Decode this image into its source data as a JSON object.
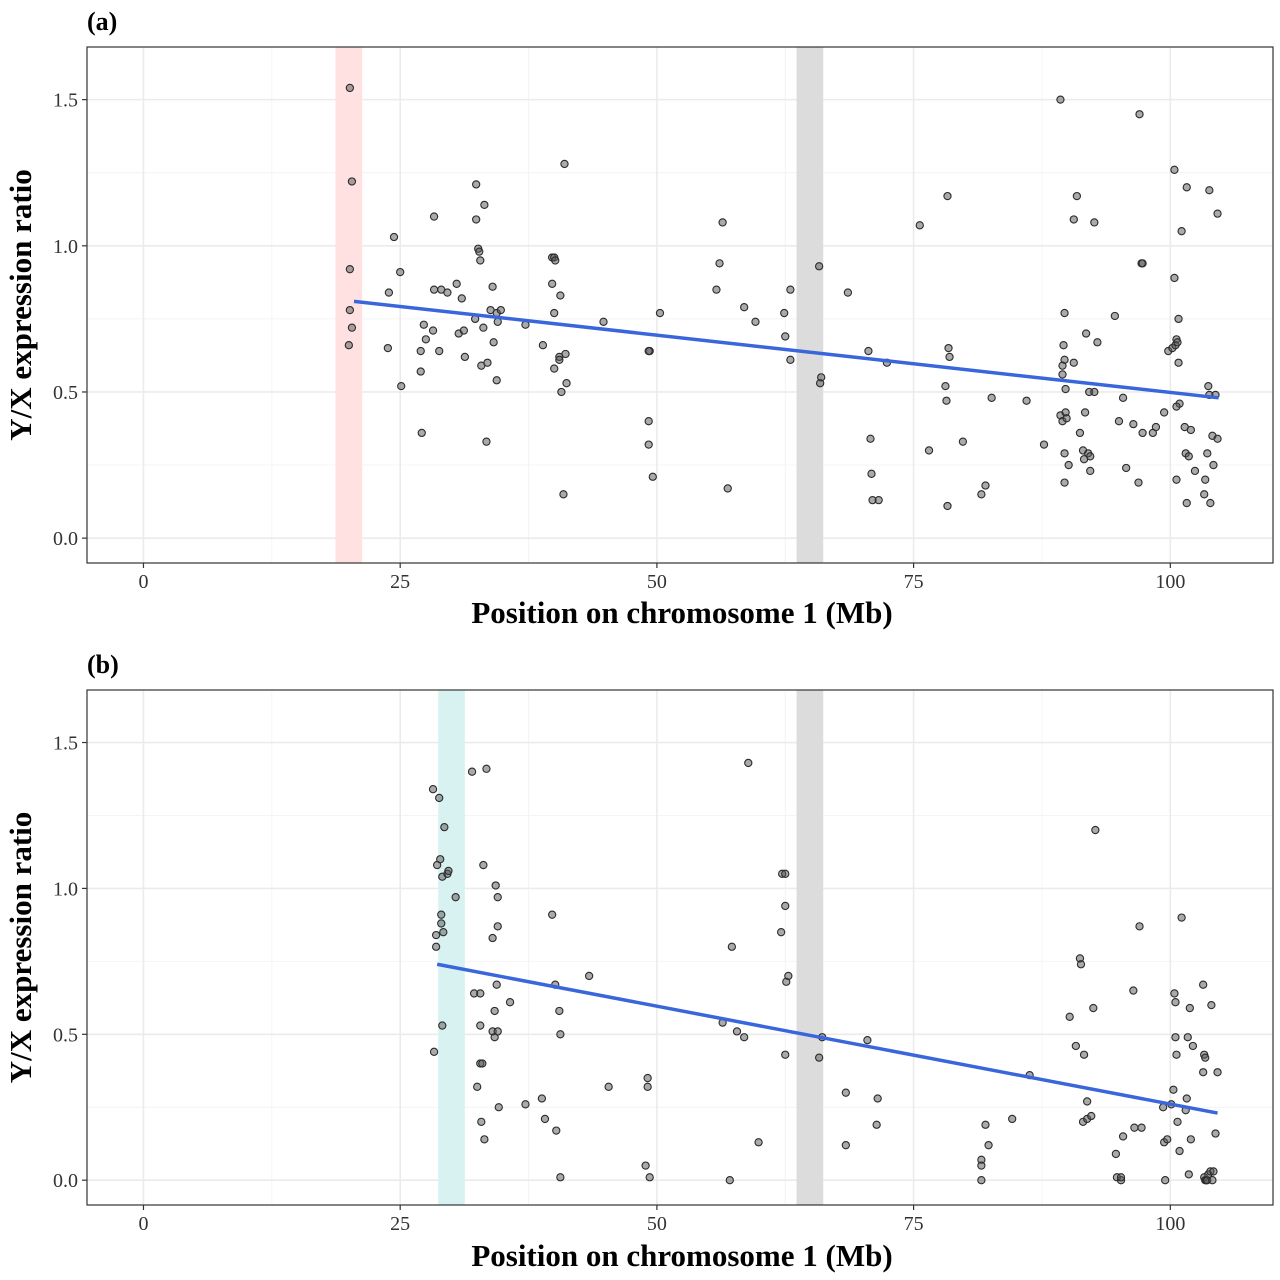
{
  "chart_data": [
    {
      "type": "scatter",
      "panel_label": "(a)",
      "xlabel": "Position on chromosome 1 (Mb)",
      "ylabel": "Y/X expression ratio",
      "xlim": [
        -5.5,
        110
      ],
      "ylim": [
        -0.085,
        1.68
      ],
      "x_ticks": [
        0,
        25,
        50,
        75,
        100
      ],
      "x_tick_labels": [
        "0",
        "25",
        "50",
        "75",
        "100"
      ],
      "y_ticks": [
        0,
        0.5,
        1,
        1.5
      ],
      "y_tick_labels": [
        "0.0",
        "0.5",
        "1.0",
        "1.5"
      ],
      "grid": true,
      "highlight_bands": [
        {
          "x0": 18.7,
          "x1": 21.3,
          "color": "#ffe1e1"
        },
        {
          "x0": 63.6,
          "x1": 66.2,
          "color": "#dcdcdc"
        }
      ],
      "trend_line": {
        "x": [
          20.5,
          104.7
        ],
        "y": [
          0.81,
          0.48
        ],
        "color": "#3a66dc"
      },
      "point_color": "#555555",
      "points": [
        [
          20.1,
          1.54
        ],
        [
          20.3,
          1.22
        ],
        [
          20.1,
          0.92
        ],
        [
          20.1,
          0.78
        ],
        [
          20.3,
          0.72
        ],
        [
          20.0,
          0.66
        ],
        [
          23.9,
          0.84
        ],
        [
          24.4,
          1.03
        ],
        [
          23.8,
          0.65
        ],
        [
          25.0,
          0.91
        ],
        [
          25.1,
          0.52
        ],
        [
          27.0,
          0.57
        ],
        [
          27.1,
          0.36
        ],
        [
          27.0,
          0.64
        ],
        [
          27.3,
          0.73
        ],
        [
          27.5,
          0.68
        ],
        [
          28.2,
          0.71
        ],
        [
          28.3,
          1.1
        ],
        [
          28.3,
          0.85
        ],
        [
          28.8,
          0.64
        ],
        [
          29.0,
          0.85
        ],
        [
          29.6,
          0.84
        ],
        [
          30.5,
          0.87
        ],
        [
          30.7,
          0.7
        ],
        [
          31.0,
          0.82
        ],
        [
          31.2,
          0.71
        ],
        [
          31.3,
          0.62
        ],
        [
          32.3,
          0.75
        ],
        [
          32.4,
          1.09
        ],
        [
          32.4,
          1.21
        ],
        [
          32.6,
          0.99
        ],
        [
          32.7,
          0.98
        ],
        [
          32.8,
          0.95
        ],
        [
          32.9,
          0.59
        ],
        [
          33.1,
          0.72
        ],
        [
          33.2,
          1.14
        ],
        [
          33.5,
          0.6
        ],
        [
          33.4,
          0.33
        ],
        [
          33.8,
          0.78
        ],
        [
          34.0,
          0.86
        ],
        [
          34.1,
          0.67
        ],
        [
          34.4,
          0.77
        ],
        [
          34.5,
          0.74
        ],
        [
          34.4,
          0.54
        ],
        [
          34.8,
          0.78
        ],
        [
          37.2,
          0.73
        ],
        [
          38.9,
          0.66
        ],
        [
          39.8,
          0.96
        ],
        [
          40.0,
          0.96
        ],
        [
          39.8,
          0.87
        ],
        [
          40.0,
          0.77
        ],
        [
          40.1,
          0.95
        ],
        [
          40.6,
          0.83
        ],
        [
          40.0,
          0.58
        ],
        [
          40.5,
          0.62
        ],
        [
          40.5,
          0.61
        ],
        [
          40.7,
          0.5
        ],
        [
          40.9,
          0.15
        ],
        [
          41.1,
          0.63
        ],
        [
          41.2,
          0.53
        ],
        [
          41.0,
          1.28
        ],
        [
          44.8,
          0.74
        ],
        [
          49.3,
          0.64
        ],
        [
          49.2,
          0.64
        ],
        [
          49.2,
          0.4
        ],
        [
          49.2,
          0.32
        ],
        [
          49.6,
          0.21
        ],
        [
          50.3,
          0.77
        ],
        [
          55.8,
          0.85
        ],
        [
          56.4,
          1.08
        ],
        [
          56.1,
          0.94
        ],
        [
          56.9,
          0.17
        ],
        [
          58.5,
          0.79
        ],
        [
          59.6,
          0.74
        ],
        [
          62.4,
          0.77
        ],
        [
          62.5,
          0.69
        ],
        [
          63.0,
          0.85
        ],
        [
          63.0,
          0.61
        ],
        [
          65.8,
          0.93
        ],
        [
          65.9,
          0.53
        ],
        [
          66.0,
          0.55
        ],
        [
          68.6,
          0.84
        ],
        [
          70.6,
          0.64
        ],
        [
          70.8,
          0.34
        ],
        [
          70.9,
          0.22
        ],
        [
          71.0,
          0.13
        ],
        [
          71.6,
          0.13
        ],
        [
          72.4,
          0.6
        ],
        [
          75.6,
          1.07
        ],
        [
          76.5,
          0.3
        ],
        [
          78.3,
          1.17
        ],
        [
          78.4,
          0.65
        ],
        [
          78.5,
          0.62
        ],
        [
          78.1,
          0.52
        ],
        [
          78.2,
          0.47
        ],
        [
          78.3,
          0.11
        ],
        [
          79.8,
          0.33
        ],
        [
          81.6,
          0.15
        ],
        [
          82.0,
          0.18
        ],
        [
          82.6,
          0.48
        ],
        [
          86.0,
          0.47
        ],
        [
          87.7,
          0.32
        ],
        [
          89.3,
          1.5
        ],
        [
          89.7,
          0.77
        ],
        [
          89.6,
          0.66
        ],
        [
          89.7,
          0.61
        ],
        [
          89.5,
          0.59
        ],
        [
          89.5,
          0.56
        ],
        [
          89.8,
          0.51
        ],
        [
          89.3,
          0.42
        ],
        [
          89.5,
          0.4
        ],
        [
          89.8,
          0.43
        ],
        [
          89.9,
          0.41
        ],
        [
          89.7,
          0.29
        ],
        [
          89.7,
          0.19
        ],
        [
          90.1,
          0.25
        ],
        [
          90.6,
          1.09
        ],
        [
          90.9,
          1.17
        ],
        [
          90.6,
          0.6
        ],
        [
          91.2,
          0.36
        ],
        [
          91.5,
          0.3
        ],
        [
          91.6,
          0.27
        ],
        [
          91.7,
          0.43
        ],
        [
          91.8,
          0.7
        ],
        [
          92.0,
          0.29
        ],
        [
          92.2,
          0.28
        ],
        [
          92.1,
          0.5
        ],
        [
          92.2,
          0.23
        ],
        [
          92.6,
          0.5
        ],
        [
          92.6,
          1.08
        ],
        [
          92.9,
          0.67
        ],
        [
          94.6,
          0.76
        ],
        [
          95.0,
          0.4
        ],
        [
          95.4,
          0.48
        ],
        [
          95.7,
          0.24
        ],
        [
          96.4,
          0.39
        ],
        [
          96.9,
          0.19
        ],
        [
          97.0,
          1.45
        ],
        [
          97.2,
          0.94
        ],
        [
          97.3,
          0.94
        ],
        [
          97.3,
          0.36
        ],
        [
          98.3,
          0.36
        ],
        [
          98.6,
          0.38
        ],
        [
          99.4,
          0.43
        ],
        [
          99.8,
          0.64
        ],
        [
          100.2,
          0.65
        ],
        [
          100.4,
          1.26
        ],
        [
          100.4,
          0.89
        ],
        [
          100.5,
          0.66
        ],
        [
          100.6,
          0.68
        ],
        [
          100.7,
          0.67
        ],
        [
          100.8,
          0.75
        ],
        [
          100.8,
          0.6
        ],
        [
          100.9,
          0.46
        ],
        [
          100.6,
          0.45
        ],
        [
          100.6,
          0.2
        ],
        [
          101.1,
          1.05
        ],
        [
          101.4,
          0.38
        ],
        [
          101.6,
          1.2
        ],
        [
          101.5,
          0.29
        ],
        [
          101.6,
          0.12
        ],
        [
          101.8,
          0.28
        ],
        [
          102.0,
          0.37
        ],
        [
          102.4,
          0.23
        ],
        [
          103.3,
          0.15
        ],
        [
          103.4,
          0.2
        ],
        [
          103.6,
          0.29
        ],
        [
          103.8,
          1.19
        ],
        [
          103.7,
          0.52
        ],
        [
          103.8,
          0.49
        ],
        [
          103.9,
          0.12
        ],
        [
          104.1,
          0.35
        ],
        [
          104.2,
          0.25
        ],
        [
          104.6,
          1.11
        ],
        [
          104.4,
          0.49
        ],
        [
          104.6,
          0.34
        ]
      ]
    },
    {
      "type": "scatter",
      "panel_label": "(b)",
      "xlabel": "Position on chromosome 1 (Mb)",
      "ylabel": "Y/X expression ratio",
      "xlim": [
        -5.5,
        110
      ],
      "ylim": [
        -0.085,
        1.68
      ],
      "x_ticks": [
        0,
        25,
        50,
        75,
        100
      ],
      "x_tick_labels": [
        "0",
        "25",
        "50",
        "75",
        "100"
      ],
      "y_ticks": [
        0,
        0.5,
        1,
        1.5
      ],
      "y_tick_labels": [
        "0.0",
        "0.5",
        "1.0",
        "1.5"
      ],
      "grid": true,
      "highlight_bands": [
        {
          "x0": 28.7,
          "x1": 31.3,
          "color": "#d8f2f2"
        },
        {
          "x0": 63.6,
          "x1": 66.2,
          "color": "#dcdcdc"
        }
      ],
      "trend_line": {
        "x": [
          28.6,
          104.6
        ],
        "y": [
          0.74,
          0.23
        ],
        "color": "#3a66dc"
      },
      "point_color": "#555555",
      "points": [
        [
          28.2,
          1.34
        ],
        [
          28.3,
          0.44
        ],
        [
          28.5,
          0.84
        ],
        [
          28.5,
          0.8
        ],
        [
          28.6,
          1.08
        ],
        [
          28.8,
          1.31
        ],
        [
          28.9,
          1.1
        ],
        [
          29.0,
          0.88
        ],
        [
          29.0,
          0.91
        ],
        [
          29.1,
          1.04
        ],
        [
          29.2,
          0.85
        ],
        [
          29.1,
          0.53
        ],
        [
          29.3,
          1.21
        ],
        [
          29.6,
          1.05
        ],
        [
          29.7,
          1.06
        ],
        [
          30.4,
          0.97
        ],
        [
          32.0,
          1.4
        ],
        [
          32.2,
          0.64
        ],
        [
          32.5,
          0.32
        ],
        [
          32.8,
          0.64
        ],
        [
          32.8,
          0.4
        ],
        [
          32.8,
          0.53
        ],
        [
          32.9,
          0.2
        ],
        [
          33.0,
          0.4
        ],
        [
          33.1,
          1.08
        ],
        [
          33.2,
          0.14
        ],
        [
          33.4,
          1.41
        ],
        [
          34.0,
          0.83
        ],
        [
          34.0,
          0.51
        ],
        [
          34.2,
          0.58
        ],
        [
          34.2,
          0.49
        ],
        [
          34.3,
          1.01
        ],
        [
          34.5,
          0.97
        ],
        [
          34.5,
          0.87
        ],
        [
          34.4,
          0.67
        ],
        [
          34.5,
          0.51
        ],
        [
          34.6,
          0.25
        ],
        [
          35.7,
          0.61
        ],
        [
          37.2,
          0.26
        ],
        [
          38.8,
          0.28
        ],
        [
          39.1,
          0.21
        ],
        [
          39.8,
          0.91
        ],
        [
          40.1,
          0.67
        ],
        [
          40.2,
          0.17
        ],
        [
          40.5,
          0.58
        ],
        [
          40.6,
          0.5
        ],
        [
          40.6,
          0.01
        ],
        [
          43.4,
          0.7
        ],
        [
          45.3,
          0.32
        ],
        [
          49.1,
          0.35
        ],
        [
          49.1,
          0.32
        ],
        [
          48.9,
          0.05
        ],
        [
          49.3,
          0.01
        ],
        [
          56.4,
          0.54
        ],
        [
          57.3,
          0.8
        ],
        [
          57.8,
          0.51
        ],
        [
          57.1,
          0.0
        ],
        [
          58.5,
          0.49
        ],
        [
          58.9,
          1.43
        ],
        [
          59.9,
          0.13
        ],
        [
          62.2,
          1.05
        ],
        [
          62.5,
          1.05
        ],
        [
          62.1,
          0.85
        ],
        [
          62.5,
          0.94
        ],
        [
          62.6,
          0.68
        ],
        [
          62.8,
          0.7
        ],
        [
          62.5,
          0.43
        ],
        [
          65.8,
          0.42
        ],
        [
          66.1,
          0.49
        ],
        [
          68.4,
          0.3
        ],
        [
          68.4,
          0.12
        ],
        [
          70.5,
          0.48
        ],
        [
          71.4,
          0.19
        ],
        [
          71.5,
          0.28
        ],
        [
          81.6,
          0.07
        ],
        [
          81.6,
          0.05
        ],
        [
          81.6,
          0.0
        ],
        [
          82.0,
          0.19
        ],
        [
          82.3,
          0.12
        ],
        [
          84.6,
          0.21
        ],
        [
          86.3,
          0.36
        ],
        [
          90.2,
          0.56
        ],
        [
          90.8,
          0.46
        ],
        [
          91.2,
          0.76
        ],
        [
          91.3,
          0.74
        ],
        [
          91.5,
          0.2
        ],
        [
          91.6,
          0.43
        ],
        [
          91.9,
          0.21
        ],
        [
          91.9,
          0.27
        ],
        [
          92.3,
          0.22
        ],
        [
          92.5,
          0.59
        ],
        [
          92.7,
          1.2
        ],
        [
          94.7,
          0.09
        ],
        [
          94.8,
          0.01
        ],
        [
          95.2,
          0.0
        ],
        [
          95.2,
          0.01
        ],
        [
          95.4,
          0.15
        ],
        [
          96.4,
          0.65
        ],
        [
          96.5,
          0.18
        ],
        [
          97.0,
          0.87
        ],
        [
          97.2,
          0.18
        ],
        [
          99.3,
          0.25
        ],
        [
          99.4,
          0.13
        ],
        [
          99.5,
          0.0
        ],
        [
          99.7,
          0.14
        ],
        [
          100.1,
          0.26
        ],
        [
          100.3,
          0.31
        ],
        [
          100.4,
          0.64
        ],
        [
          100.5,
          0.61
        ],
        [
          100.5,
          0.49
        ],
        [
          100.6,
          0.43
        ],
        [
          100.7,
          0.2
        ],
        [
          100.9,
          0.1
        ],
        [
          101.1,
          0.9
        ],
        [
          101.5,
          0.24
        ],
        [
          101.6,
          0.28
        ],
        [
          101.7,
          0.49
        ],
        [
          101.8,
          0.02
        ],
        [
          101.9,
          0.59
        ],
        [
          102.0,
          0.14
        ],
        [
          102.2,
          0.46
        ],
        [
          103.2,
          0.67
        ],
        [
          103.2,
          0.37
        ],
        [
          103.3,
          0.43
        ],
        [
          103.3,
          0.01
        ],
        [
          103.4,
          0.42
        ],
        [
          103.4,
          0.0
        ],
        [
          103.5,
          0.0
        ],
        [
          103.6,
          0.0
        ],
        [
          103.7,
          0.02
        ],
        [
          103.9,
          0.03
        ],
        [
          104.0,
          0.6
        ],
        [
          104.1,
          0.0
        ],
        [
          104.2,
          0.03
        ],
        [
          104.4,
          0.16
        ],
        [
          104.6,
          0.37
        ]
      ]
    }
  ]
}
